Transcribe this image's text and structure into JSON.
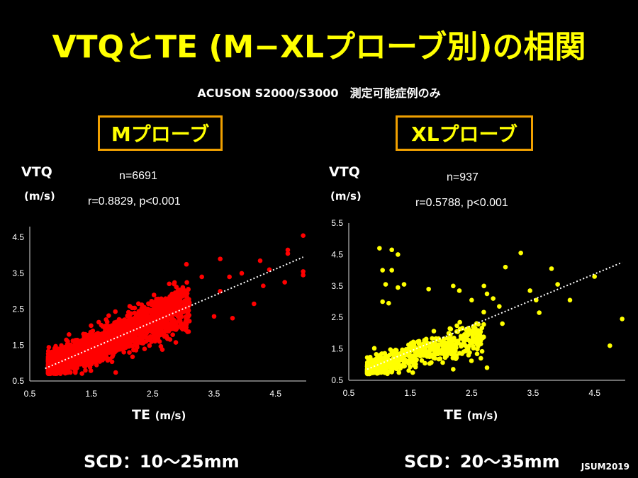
{
  "title": "VTQとTE (M−XLプローブ別)の相関",
  "subtitle": "ACUSON S2000/S3000　測定可能症例のみ",
  "credit": "JSUM2019",
  "colors": {
    "title": "#ffff00",
    "box_border": "#f0a000",
    "m_points": "#ff0000",
    "xl_points": "#ffff00",
    "trend": "#ffffff"
  },
  "left": {
    "probe_label": "Mプローブ",
    "ylabel": "VTQ",
    "yunit": "(m/s)",
    "n_text": "n=6691",
    "r_text": "r=0.8829, p<0.001",
    "xlabel": "TE",
    "xunit": "(m/s)",
    "scd": "SCD：10〜25mm"
  },
  "right": {
    "probe_label": "XLプローブ",
    "ylabel": "VTQ",
    "yunit": "(m/s)",
    "n_text": "n=937",
    "r_text": "r=0.5788, p<0.001",
    "xlabel": "TE",
    "xunit": "(m/s)",
    "scd": "SCD：20〜35mm"
  },
  "chart_data": [
    {
      "type": "scatter",
      "title": "Mプローブ",
      "xlabel": "TE (m/s)",
      "ylabel": "VTQ (m/s)",
      "n": 6691,
      "r": 0.8829,
      "p": "<0.001",
      "color": "#ff0000",
      "xlim": [
        0.5,
        5.0
      ],
      "ylim": [
        0.5,
        4.8
      ],
      "xticks": [
        0.5,
        1.5,
        2.5,
        3.5,
        4.5
      ],
      "yticks": [
        0.5,
        1.5,
        2.5,
        3.5,
        4.5
      ],
      "trendline": {
        "x": [
          0.75,
          4.95
        ],
        "y": [
          0.85,
          3.95
        ],
        "style": "dotted"
      },
      "outliers": [
        [
          4.95,
          4.55
        ],
        [
          4.7,
          4.15
        ],
        [
          4.7,
          4.05
        ],
        [
          4.95,
          3.55
        ],
        [
          4.95,
          3.45
        ],
        [
          4.65,
          3.25
        ],
        [
          4.25,
          3.85
        ],
        [
          4.4,
          3.6
        ],
        [
          4.3,
          3.15
        ],
        [
          3.95,
          3.5
        ],
        [
          3.75,
          3.4
        ],
        [
          3.6,
          3.9
        ],
        [
          3.6,
          3.0
        ],
        [
          3.3,
          3.4
        ],
        [
          2.95,
          2.85
        ],
        [
          2.85,
          3.2
        ],
        [
          3.5,
          2.3
        ],
        [
          3.8,
          2.25
        ],
        [
          4.15,
          2.65
        ],
        [
          2.9,
          2.55
        ],
        [
          3.05,
          3.75
        ]
      ],
      "cloud": {
        "x_range": [
          0.8,
          3.1
        ],
        "slope": 0.75,
        "intercept": 0.3,
        "spread_sd": 0.22
      }
    },
    {
      "type": "scatter",
      "title": "XLプローブ",
      "xlabel": "TE (m/s)",
      "ylabel": "VTQ (m/s)",
      "n": 937,
      "r": 0.5788,
      "p": "<0.001",
      "color": "#ffff00",
      "xlim": [
        0.5,
        5.0
      ],
      "ylim": [
        0.5,
        5.5
      ],
      "xticks": [
        0.5,
        1.5,
        2.5,
        3.5,
        4.5
      ],
      "yticks": [
        0.5,
        1.5,
        2.5,
        3.5,
        4.5,
        5.5
      ],
      "trendline": {
        "x": [
          0.8,
          4.95
        ],
        "y": [
          0.85,
          4.25
        ],
        "style": "dotted"
      },
      "outliers": [
        [
          1.0,
          4.7
        ],
        [
          1.2,
          4.65
        ],
        [
          1.3,
          4.5
        ],
        [
          1.05,
          4.0
        ],
        [
          1.2,
          4.0
        ],
        [
          1.1,
          3.55
        ],
        [
          1.3,
          3.45
        ],
        [
          1.4,
          3.55
        ],
        [
          1.05,
          3.0
        ],
        [
          1.15,
          2.95
        ],
        [
          1.8,
          3.4
        ],
        [
          2.2,
          3.5
        ],
        [
          2.3,
          3.35
        ],
        [
          2.5,
          3.05
        ],
        [
          2.7,
          3.5
        ],
        [
          2.75,
          3.25
        ],
        [
          2.85,
          3.1
        ],
        [
          2.95,
          2.85
        ],
        [
          3.3,
          4.55
        ],
        [
          3.05,
          4.1
        ],
        [
          3.45,
          3.35
        ],
        [
          3.55,
          3.05
        ],
        [
          3.6,
          2.65
        ],
        [
          3.8,
          4.05
        ],
        [
          3.9,
          3.55
        ],
        [
          4.1,
          3.05
        ],
        [
          4.5,
          3.8
        ],
        [
          4.75,
          1.6
        ],
        [
          4.95,
          2.45
        ],
        [
          2.2,
          1.35
        ],
        [
          2.45,
          1.3
        ],
        [
          2.65,
          1.2
        ],
        [
          2.75,
          0.9
        ],
        [
          2.2,
          0.85
        ],
        [
          3.0,
          2.3
        ]
      ],
      "cloud": {
        "x_range": [
          0.8,
          2.7
        ],
        "slope": 0.55,
        "intercept": 0.45,
        "spread_sd": 0.2
      }
    }
  ]
}
